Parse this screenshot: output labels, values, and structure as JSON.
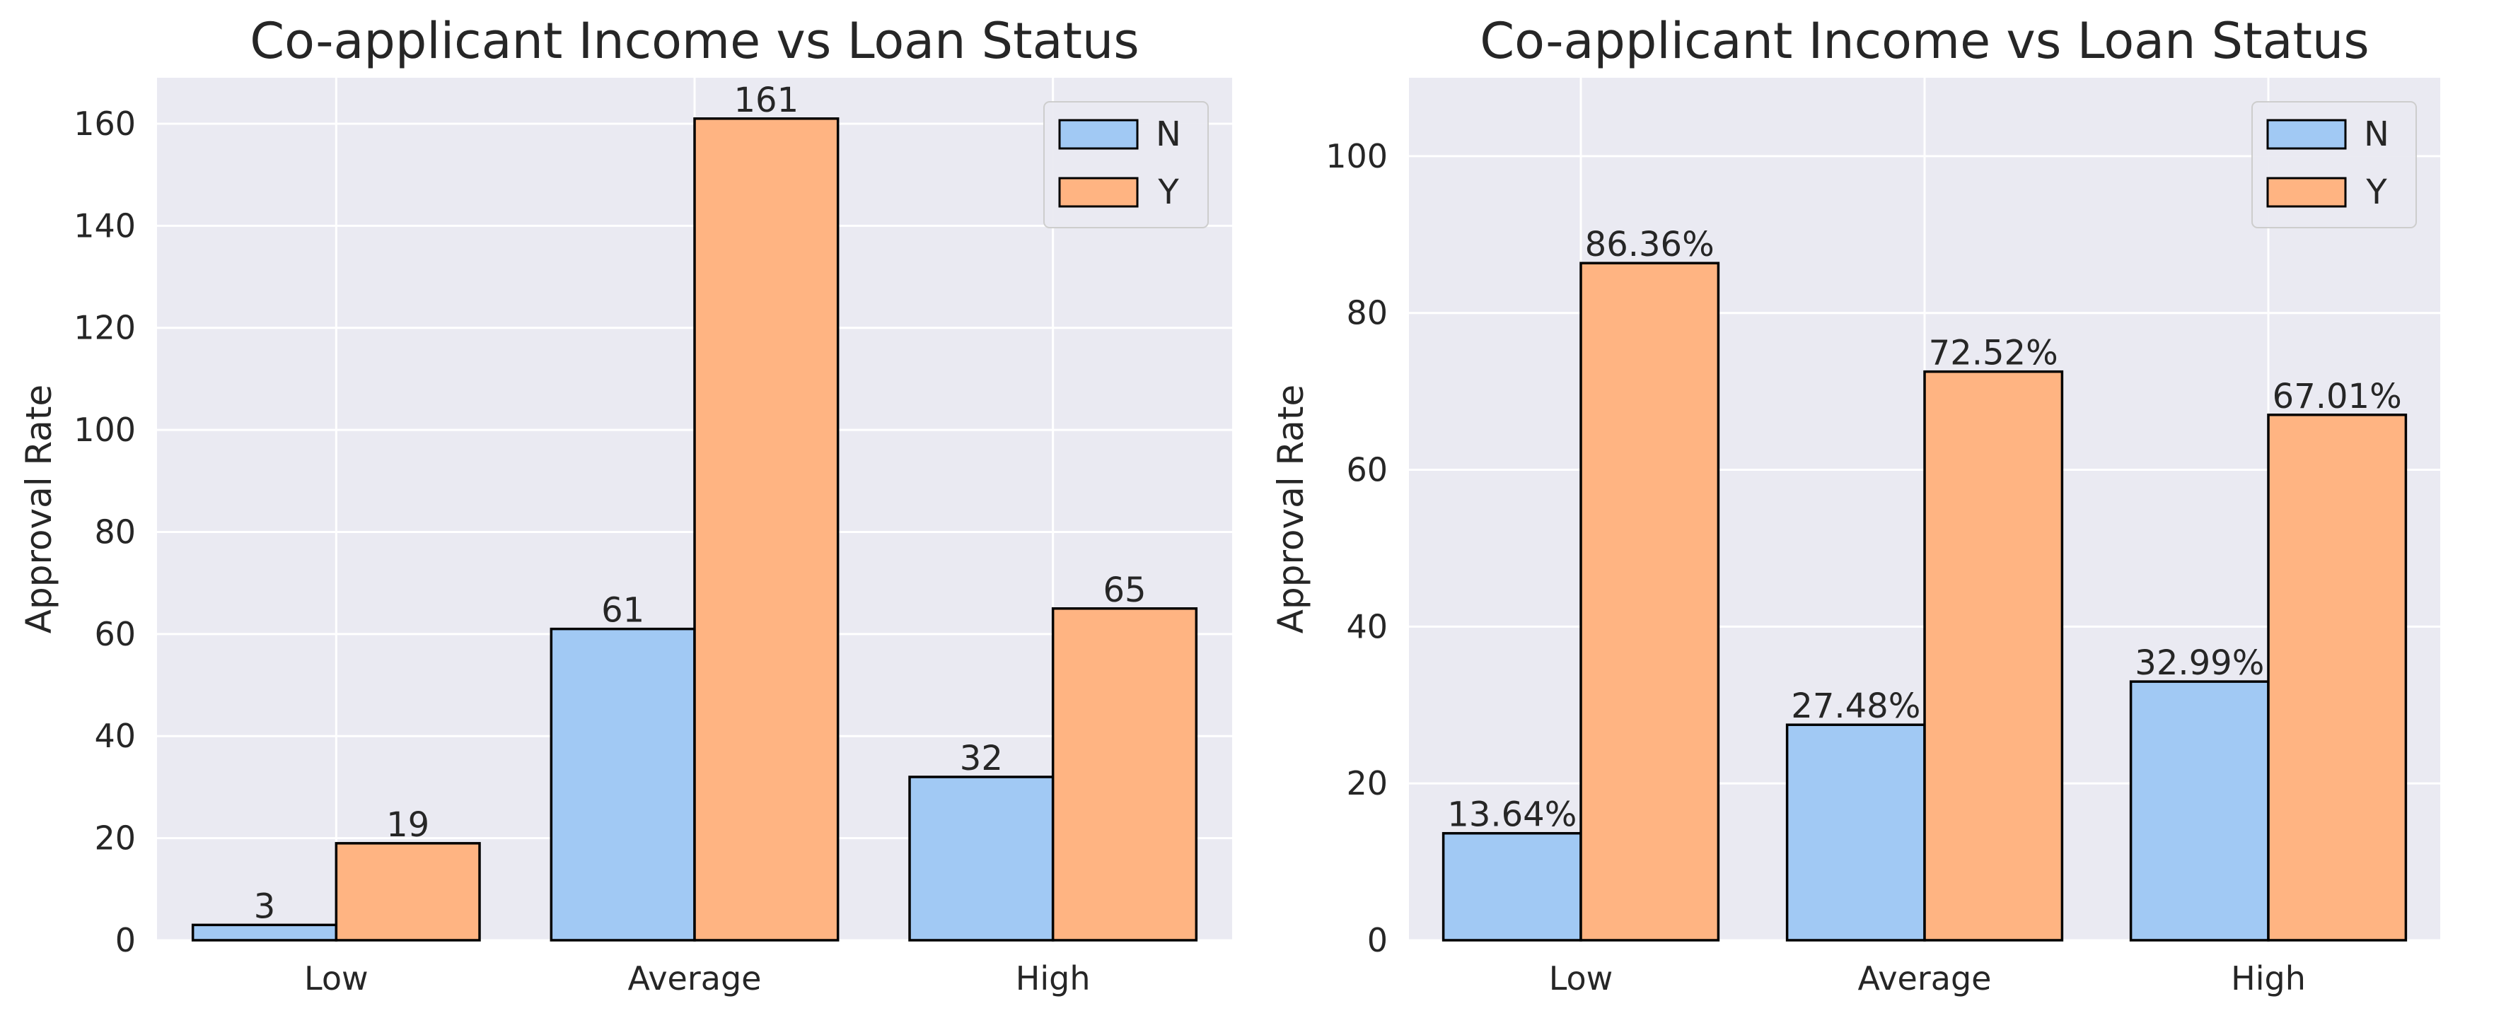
{
  "chart_data": [
    {
      "type": "bar",
      "title": "Co-applicant Income vs Loan Status",
      "xlabel": "",
      "ylabel": "Approval Rate",
      "categories": [
        "Low",
        "Average",
        "High"
      ],
      "ylim": [
        0,
        169
      ],
      "yticks": [
        0,
        20,
        40,
        60,
        80,
        100,
        120,
        140,
        160
      ],
      "grid": true,
      "legend_position": "top-right",
      "series": [
        {
          "name": "N",
          "color": "#a1c9f4",
          "values": [
            3,
            61,
            32
          ],
          "labels": [
            "3",
            "61",
            "32"
          ]
        },
        {
          "name": "Y",
          "color": "#ffb482",
          "values": [
            19,
            161,
            65
          ],
          "labels": [
            "19",
            "161",
            "65"
          ]
        }
      ]
    },
    {
      "type": "bar",
      "title": "Co-applicant Income vs Loan Status",
      "xlabel": "",
      "ylabel": "Approval Rate",
      "categories": [
        "Low",
        "Average",
        "High"
      ],
      "ylim": [
        0,
        110
      ],
      "yticks": [
        0,
        20,
        40,
        60,
        80,
        100
      ],
      "grid": true,
      "legend_position": "top-right",
      "series": [
        {
          "name": "N",
          "color": "#a1c9f4",
          "values": [
            13.64,
            27.48,
            32.99
          ],
          "labels": [
            "13.64%",
            "27.48%",
            "32.99%"
          ]
        },
        {
          "name": "Y",
          "color": "#ffb482",
          "values": [
            86.36,
            72.52,
            67.01
          ],
          "labels": [
            "86.36%",
            "72.52%",
            "67.01%"
          ]
        }
      ]
    }
  ]
}
